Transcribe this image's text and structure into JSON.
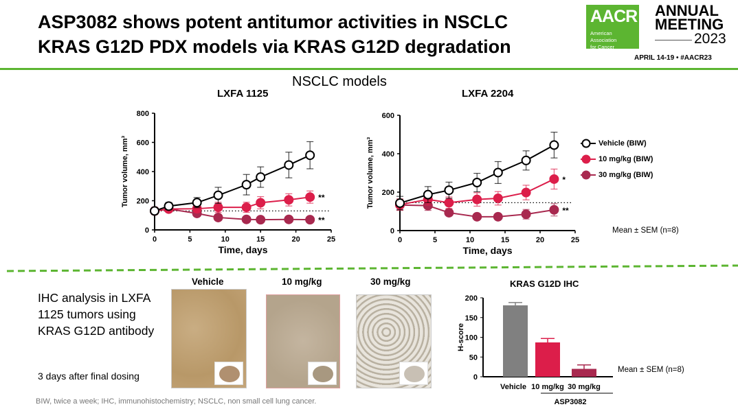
{
  "header": {
    "title_line1": "ASP3082 shows potent antitumor activities in NSCLC",
    "title_line2": "KRAS G12D PDX models via KRAS G12D degradation"
  },
  "logo": {
    "aacr": "AACR",
    "org_line1": "American Association",
    "org_line2": "for Cancer Research®",
    "annual": "ANNUAL",
    "meeting": "MEETING",
    "year": "2023",
    "dates": "APRIL 14-19 • #AACR23"
  },
  "section_title": "NSCLC models",
  "colors": {
    "vehicle": "#000000",
    "dose10": "#dc1e4a",
    "dose30": "#a8294f",
    "bar_vehicle": "#808080",
    "accent": "#5cb531"
  },
  "legend": [
    "Vehicle (BIW)",
    "10 mg/kg (BIW)",
    "30 mg/kg (BIW)"
  ],
  "mean_sem": "Mean ± SEM (n=8)",
  "chart_data": [
    {
      "type": "line",
      "title": "LXFA 1125",
      "xlabel": "Time, days",
      "ylabel": "Tumor volume, mm³",
      "xlim": [
        0,
        25
      ],
      "ylim": [
        0,
        800
      ],
      "xticks": [
        "0",
        "5",
        "10",
        "15",
        "20",
        "25"
      ],
      "yticks": [
        "0",
        "200",
        "400",
        "600",
        "800"
      ],
      "baseline": 130,
      "series": [
        {
          "name": "Vehicle (BIW)",
          "x": [
            0,
            2,
            6,
            9,
            13,
            15,
            19,
            22
          ],
          "y": [
            130,
            163,
            187,
            237,
            310,
            362,
            445,
            512
          ],
          "err": [
            20,
            25,
            35,
            55,
            70,
            70,
            88,
            93
          ]
        },
        {
          "name": "10 mg/kg (BIW)",
          "x": [
            0,
            2,
            6,
            9,
            13,
            15,
            19,
            22
          ],
          "y": [
            130,
            143,
            145,
            155,
            155,
            186,
            206,
            225
          ],
          "err": [
            25,
            15,
            25,
            35,
            35,
            42,
            42,
            42
          ],
          "annotation": "**"
        },
        {
          "name": "30 mg/kg (BIW)",
          "x": [
            0,
            2,
            6,
            9,
            13,
            15,
            19,
            22
          ],
          "y": [
            130,
            143,
            113,
            85,
            72,
            70,
            72,
            70
          ],
          "err": [
            20,
            15,
            20,
            8,
            5,
            5,
            5,
            5
          ],
          "annotation": "**"
        }
      ]
    },
    {
      "type": "line",
      "title": "LXFA 2204",
      "xlabel": "Time, days",
      "ylabel": "Tumor volume, mm³",
      "xlim": [
        0,
        25
      ],
      "ylim": [
        0,
        600
      ],
      "xticks": [
        "0",
        "5",
        "10",
        "15",
        "20",
        "25"
      ],
      "yticks": [
        "0",
        "200",
        "400",
        "600"
      ],
      "baseline": 145,
      "series": [
        {
          "name": "Vehicle (BIW)",
          "x": [
            0,
            4,
            7,
            11,
            14,
            18,
            22
          ],
          "y": [
            143,
            187,
            210,
            250,
            302,
            365,
            445
          ],
          "err": [
            35,
            42,
            42,
            48,
            57,
            50,
            67
          ]
        },
        {
          "name": "10 mg/kg (BIW)",
          "x": [
            0,
            4,
            7,
            11,
            14,
            18,
            22
          ],
          "y": [
            135,
            162,
            145,
            162,
            168,
            198,
            268
          ],
          "err": [
            30,
            30,
            30,
            35,
            35,
            38,
            52
          ],
          "annotation": "*"
        },
        {
          "name": "30 mg/kg (BIW)",
          "x": [
            0,
            4,
            7,
            11,
            14,
            18,
            22
          ],
          "y": [
            133,
            130,
            93,
            72,
            72,
            85,
            108
          ],
          "err": [
            25,
            25,
            15,
            8,
            6,
            25,
            32
          ],
          "annotation": "**"
        }
      ]
    },
    {
      "type": "bar",
      "title": "KRAS G12D IHC",
      "ylabel": "H-score",
      "ylim": [
        0,
        200
      ],
      "yticks": [
        "0",
        "50",
        "100",
        "150",
        "200"
      ],
      "categories": [
        "Vehicle",
        "10 mg/kg",
        "30 mg/kg"
      ],
      "values": [
        181,
        87,
        20
      ],
      "err": [
        7,
        10,
        10
      ],
      "group_label": "ASP3082"
    }
  ],
  "ihc": {
    "text": "IHC analysis in LXFA 1125 tumors using KRAS G12D antibody",
    "timing": "3 days after final dosing",
    "images": [
      "Vehicle",
      "10 mg/kg",
      "30 mg/kg"
    ]
  },
  "footnote": "BIW, twice a week; IHC, immunohistochemistry; NSCLC, non small cell lung cancer."
}
